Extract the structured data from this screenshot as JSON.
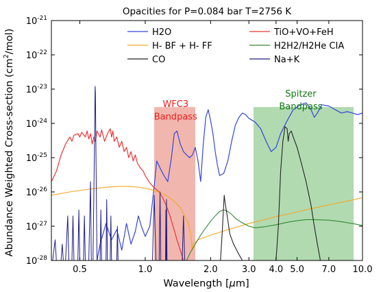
{
  "chart_data": {
    "type": "line",
    "title": "Opacities for P=0.084 bar T=2756 K",
    "xlabel_main": "Wavelength [",
    "xlabel_mu": "μ",
    "xlabel_end": "m]",
    "ylabel_main": "Abundance Weighted Cross-section (cm",
    "ylabel_sup": "2",
    "ylabel_end": "/mol)",
    "x_scale": "log",
    "y_scale": "log",
    "xlim": [
      0.37,
      10.0
    ],
    "ylim": [
      1e-28,
      1e-21
    ],
    "x_ticks": [
      {
        "value": 0.5,
        "label": "0.5"
      },
      {
        "value": 1.0,
        "label": "1.0"
      },
      {
        "value": 2.0,
        "label": "2.0"
      },
      {
        "value": 3.0,
        "label": "3.0"
      },
      {
        "value": 4.0,
        "label": "4.0"
      },
      {
        "value": 5.0,
        "label": "5.0"
      },
      {
        "value": 7.0,
        "label": "7.0"
      },
      {
        "value": 10.0,
        "label": "10.0"
      }
    ],
    "y_ticks": [
      {
        "exp": -28,
        "base": "10",
        "sup": "-28"
      },
      {
        "exp": -27,
        "base": "10",
        "sup": "-27"
      },
      {
        "exp": -26,
        "base": "10",
        "sup": "-26"
      },
      {
        "exp": -25,
        "base": "10",
        "sup": "-25"
      },
      {
        "exp": -24,
        "base": "10",
        "sup": "-24"
      },
      {
        "exp": -23,
        "base": "10",
        "sup": "-23"
      },
      {
        "exp": -22,
        "base": "10",
        "sup": "-22"
      },
      {
        "exp": -21,
        "base": "10",
        "sup": "-21"
      }
    ],
    "bands": [
      {
        "name": "wfc3-band",
        "label_line1": "WFC3",
        "label_line2": "Bandpass",
        "xmin": 1.1,
        "xmax": 1.7,
        "ymax": 3e-24,
        "color": "#eeaaa0",
        "label_color": "#ee1c1c",
        "label_x": 1.38,
        "label_y1": 3e-24,
        "label_y2": 1.3e-24
      },
      {
        "name": "spitzer-band",
        "label_line1": "Spitzer",
        "label_line2": "Bandpass",
        "xmin": 3.15,
        "xmax": 9.1,
        "ymax": 3e-24,
        "color": "#a3d3a3",
        "label_color": "#117711",
        "label_x": 5.2,
        "label_y1": 6e-24,
        "label_y2": 2.6e-24
      }
    ],
    "legend": {
      "placement": "top",
      "entries": [
        {
          "name": "H2O",
          "color": "#3344dd",
          "col": 0,
          "row": 0
        },
        {
          "name": "H- BF + H- FF",
          "color": "#f5a623",
          "col": 0,
          "row": 1
        },
        {
          "name": "CO",
          "color": "#222222",
          "col": 0,
          "row": 2
        },
        {
          "name": "TiO+VO+FeH",
          "color": "#ee3333",
          "col": 1,
          "row": 0
        },
        {
          "name": "H2H2/H2He CIA",
          "color": "#338833",
          "col": 1,
          "row": 1
        },
        {
          "name": "Na+K",
          "color": "#1c1c88",
          "col": 1,
          "row": 2
        }
      ]
    },
    "series": [
      {
        "name": "H2O",
        "color": "#3344dd",
        "width": 1.2,
        "points": [
          [
            0.6,
            1e-28
          ],
          [
            0.62,
            3e-28
          ],
          [
            0.66,
            1.2e-27
          ],
          [
            0.7,
            4e-28
          ],
          [
            0.74,
            8e-28
          ],
          [
            0.78,
            2e-28
          ],
          [
            0.82,
            1.2e-27
          ],
          [
            0.86,
            3e-28
          ],
          [
            0.9,
            7e-28
          ],
          [
            0.93,
            2e-27
          ],
          [
            0.96,
            1e-27
          ],
          [
            1.0,
            5e-28
          ],
          [
            1.05,
            1e-27
          ],
          [
            1.1,
            1.5e-26
          ],
          [
            1.13,
            8e-26
          ],
          [
            1.17,
            5e-26
          ],
          [
            1.22,
            3e-26
          ],
          [
            1.27,
            2e-26
          ],
          [
            1.32,
            1e-25
          ],
          [
            1.36,
            5e-25
          ],
          [
            1.4,
            6e-25
          ],
          [
            1.45,
            2.5e-25
          ],
          [
            1.5,
            1.5e-25
          ],
          [
            1.55,
            1.2e-25
          ],
          [
            1.6,
            1e-25
          ],
          [
            1.65,
            1.2e-25
          ],
          [
            1.7,
            2e-25
          ],
          [
            1.75,
            8e-26
          ],
          [
            1.8,
            2e-26
          ],
          [
            1.85,
            2.5e-25
          ],
          [
            1.9,
            1.5e-24
          ],
          [
            1.95,
            2.5e-24
          ],
          [
            2.0,
            1.2e-24
          ],
          [
            2.05,
            5e-25
          ],
          [
            2.1,
            1.5e-25
          ],
          [
            2.15,
            6e-26
          ],
          [
            2.2,
            3e-26
          ],
          [
            2.3,
            3.5e-26
          ],
          [
            2.4,
            8e-26
          ],
          [
            2.5,
            3e-25
          ],
          [
            2.6,
            9e-25
          ],
          [
            2.7,
            1.5e-24
          ],
          [
            2.8,
            2e-24
          ],
          [
            2.9,
            1.8e-24
          ],
          [
            3.0,
            1.4e-24
          ],
          [
            3.2,
            1.1e-24
          ],
          [
            3.4,
            7e-25
          ],
          [
            3.6,
            3e-25
          ],
          [
            3.8,
            1.5e-25
          ],
          [
            4.0,
            2e-25
          ],
          [
            4.2,
            5e-25
          ],
          [
            4.5,
            1.2e-24
          ],
          [
            4.8,
            2.5e-24
          ],
          [
            5.0,
            3e-24
          ],
          [
            5.2,
            3.5e-24
          ],
          [
            5.5,
            4e-24
          ],
          [
            5.8,
            2.5e-24
          ],
          [
            6.0,
            1.5e-24
          ],
          [
            6.2,
            2e-24
          ],
          [
            6.5,
            3.5e-24
          ],
          [
            7.0,
            3.2e-24
          ],
          [
            7.5,
            2.5e-24
          ],
          [
            8.0,
            2e-24
          ],
          [
            8.5,
            2.2e-24
          ],
          [
            9.0,
            2e-24
          ],
          [
            9.5,
            1.8e-24
          ],
          [
            10.0,
            2e-24
          ]
        ]
      },
      {
        "name": "TiO+VO+FeH",
        "color": "#ee3333",
        "width": 1.2,
        "points": [
          [
            0.37,
            2e-26
          ],
          [
            0.39,
            4e-26
          ],
          [
            0.41,
            1.2e-25
          ],
          [
            0.43,
            2.5e-25
          ],
          [
            0.45,
            4e-25
          ],
          [
            0.46,
            3e-25
          ],
          [
            0.47,
            4.5e-25
          ],
          [
            0.49,
            5e-25
          ],
          [
            0.5,
            4e-25
          ],
          [
            0.51,
            5.5e-25
          ],
          [
            0.53,
            4e-25
          ],
          [
            0.54,
            6e-25
          ],
          [
            0.55,
            3.5e-25
          ],
          [
            0.56,
            5e-25
          ],
          [
            0.57,
            2.5e-25
          ],
          [
            0.58,
            4e-25
          ],
          [
            0.59,
            3e-25
          ],
          [
            0.6,
            6e-25
          ],
          [
            0.62,
            4e-25
          ],
          [
            0.63,
            6.5e-25
          ],
          [
            0.65,
            3e-25
          ],
          [
            0.67,
            5e-25
          ],
          [
            0.69,
            7e-25
          ],
          [
            0.7,
            4e-25
          ],
          [
            0.71,
            6e-25
          ],
          [
            0.72,
            3e-25
          ],
          [
            0.74,
            4e-25
          ],
          [
            0.76,
            2e-25
          ],
          [
            0.78,
            3e-25
          ],
          [
            0.8,
            1.5e-25
          ],
          [
            0.82,
            2e-25
          ],
          [
            0.84,
            1e-25
          ],
          [
            0.86,
            1.5e-25
          ],
          [
            0.88,
            8e-26
          ],
          [
            0.9,
            1.2e-25
          ],
          [
            0.92,
            7e-26
          ],
          [
            0.95,
            5e-26
          ],
          [
            0.98,
            4e-26
          ],
          [
            1.0,
            3e-26
          ],
          [
            1.04,
            2e-26
          ],
          [
            1.08,
            1.5e-26
          ],
          [
            1.12,
            1.2e-26
          ],
          [
            1.16,
            1e-26
          ],
          [
            1.2,
            7e-27
          ],
          [
            1.25,
            4e-27
          ],
          [
            1.3,
            2e-27
          ],
          [
            1.35,
            9e-28
          ],
          [
            1.4,
            4e-28
          ],
          [
            1.45,
            2e-28
          ],
          [
            1.5,
            1e-28
          ]
        ]
      },
      {
        "name": "H- BF + H- FF",
        "color": "#f5a623",
        "width": 1.1,
        "points": [
          [
            0.37,
            8e-27
          ],
          [
            0.45,
            1e-26
          ],
          [
            0.55,
            1.2e-26
          ],
          [
            0.65,
            1.35e-26
          ],
          [
            0.75,
            1.45e-26
          ],
          [
            0.85,
            1.45e-26
          ],
          [
            0.95,
            1.35e-26
          ],
          [
            1.05,
            1.2e-26
          ],
          [
            1.15,
            1e-26
          ],
          [
            1.25,
            8e-27
          ],
          [
            1.35,
            5.5e-27
          ],
          [
            1.45,
            3.5e-27
          ],
          [
            1.52,
            2e-27
          ],
          [
            1.58,
            1.2e-27
          ],
          [
            1.62,
            6e-28
          ],
          [
            1.645,
            2e-28
          ],
          [
            1.66,
            3e-28
          ],
          [
            1.75,
            4e-28
          ],
          [
            2.0,
            5.5e-28
          ],
          [
            2.5,
            8.5e-28
          ],
          [
            3.0,
            1.2e-27
          ],
          [
            4.0,
            1.9e-27
          ],
          [
            5.0,
            2.6e-27
          ],
          [
            6.0,
            3.4e-27
          ],
          [
            7.0,
            4.2e-27
          ],
          [
            8.0,
            5e-27
          ],
          [
            9.0,
            5.8e-27
          ],
          [
            10.0,
            6.8e-27
          ]
        ]
      },
      {
        "name": "H2H2/H2He CIA",
        "color": "#338833",
        "width": 1.1,
        "points": [
          [
            1.55,
            1e-28
          ],
          [
            1.62,
            1.8e-28
          ],
          [
            1.7,
            3e-28
          ],
          [
            1.8,
            5.5e-28
          ],
          [
            1.9,
            9e-28
          ],
          [
            2.0,
            1.4e-27
          ],
          [
            2.1,
            2e-27
          ],
          [
            2.2,
            2.7e-27
          ],
          [
            2.3,
            3e-27
          ],
          [
            2.4,
            2.7e-27
          ],
          [
            2.5,
            2.2e-27
          ],
          [
            2.6,
            1.7e-27
          ],
          [
            2.8,
            1.25e-27
          ],
          [
            3.0,
            1e-27
          ],
          [
            3.2,
            9e-28
          ],
          [
            3.5,
            9.5e-28
          ],
          [
            4.0,
            1.1e-27
          ],
          [
            4.5,
            1.3e-27
          ],
          [
            5.0,
            1.45e-27
          ],
          [
            5.5,
            1.55e-27
          ],
          [
            6.0,
            1.55e-27
          ],
          [
            7.0,
            1.5e-27
          ],
          [
            8.0,
            1.35e-27
          ],
          [
            9.0,
            1.2e-27
          ],
          [
            10.0,
            1.05e-27
          ]
        ]
      },
      {
        "name": "CO",
        "color": "#222222",
        "width": 1.1,
        "points": [
          [
            2.22,
            1e-28
          ],
          [
            2.26,
            6e-28
          ],
          [
            2.29,
            3e-27
          ],
          [
            2.31,
            8e-27
          ],
          [
            2.33,
            5e-27
          ],
          [
            2.36,
            3e-27
          ],
          [
            2.4,
            1.5e-27
          ],
          [
            2.45,
            6e-28
          ],
          [
            2.55,
            3e-28
          ],
          [
            2.7,
            1.5e-28
          ],
          [
            2.8,
            1e-28
          ],
          [
            4.0,
            1e-28
          ],
          [
            4.1,
            1e-27
          ],
          [
            4.2,
            4e-26
          ],
          [
            4.3,
            3e-25
          ],
          [
            4.4,
            8e-25
          ],
          [
            4.5,
            7e-25
          ],
          [
            4.55,
            3e-25
          ],
          [
            4.6,
            5e-25
          ],
          [
            4.7,
            6e-25
          ],
          [
            4.8,
            4e-25
          ],
          [
            5.0,
            2e-25
          ],
          [
            5.2,
            8e-26
          ],
          [
            5.5,
            2e-26
          ],
          [
            5.8,
            4e-27
          ],
          [
            6.0,
            1e-27
          ],
          [
            6.2,
            3e-28
          ],
          [
            6.4,
            1e-28
          ]
        ]
      },
      {
        "name": "Na+K",
        "color": "#1c1c88",
        "width": 1.0,
        "points": [
          [
            0.375,
            1e-28
          ],
          [
            0.385,
            4e-28
          ],
          [
            0.39,
            1e-28
          ],
          [
            0.41,
            1e-28
          ],
          [
            0.415,
            3e-28
          ],
          [
            0.42,
            1e-28
          ],
          [
            0.43,
            1e-28
          ],
          [
            0.44,
            2e-27
          ],
          [
            0.445,
            1e-28
          ],
          [
            0.46,
            1e-28
          ],
          [
            0.465,
            2e-27
          ],
          [
            0.47,
            1e-28
          ],
          [
            0.49,
            1e-28
          ],
          [
            0.495,
            3e-27
          ],
          [
            0.5,
            1e-28
          ],
          [
            0.52,
            1e-28
          ],
          [
            0.525,
            2e-27
          ],
          [
            0.53,
            1e-28
          ],
          [
            0.55,
            1e-28
          ],
          [
            0.56,
            2e-26
          ],
          [
            0.565,
            1e-28
          ],
          [
            0.575,
            1e-28
          ],
          [
            0.585,
            5e-25
          ],
          [
            0.588,
            1.2e-23
          ],
          [
            0.59,
            8e-24
          ],
          [
            0.593,
            2e-25
          ],
          [
            0.6,
            1e-28
          ],
          [
            0.62,
            1e-28
          ],
          [
            0.625,
            3e-27
          ],
          [
            0.63,
            1e-28
          ],
          [
            0.66,
            1e-28
          ],
          [
            0.665,
            6e-27
          ],
          [
            0.67,
            1e-28
          ],
          [
            0.69,
            1e-28
          ],
          [
            0.695,
            2e-27
          ],
          [
            0.7,
            1e-28
          ],
          [
            0.74,
            1e-28
          ],
          [
            0.745,
            1e-27
          ],
          [
            0.75,
            1e-28
          ],
          [
            1.08,
            1e-28
          ],
          [
            1.1,
            8e-27
          ],
          [
            1.12,
            1e-28
          ],
          [
            1.16,
            1e-28
          ],
          [
            1.17,
            1e-26
          ],
          [
            1.18,
            1e-28
          ],
          [
            1.24,
            1e-28
          ],
          [
            1.245,
            3e-27
          ],
          [
            1.25,
            1e-28
          ],
          [
            1.25,
            1e-28
          ],
          [
            1.253,
            6e-27
          ],
          [
            1.26,
            1e-28
          ],
          [
            1.48,
            1e-28
          ],
          [
            1.5,
            2e-27
          ],
          [
            1.52,
            1e-28
          ],
          [
            1.7,
            1e-28
          ]
        ]
      }
    ]
  }
}
